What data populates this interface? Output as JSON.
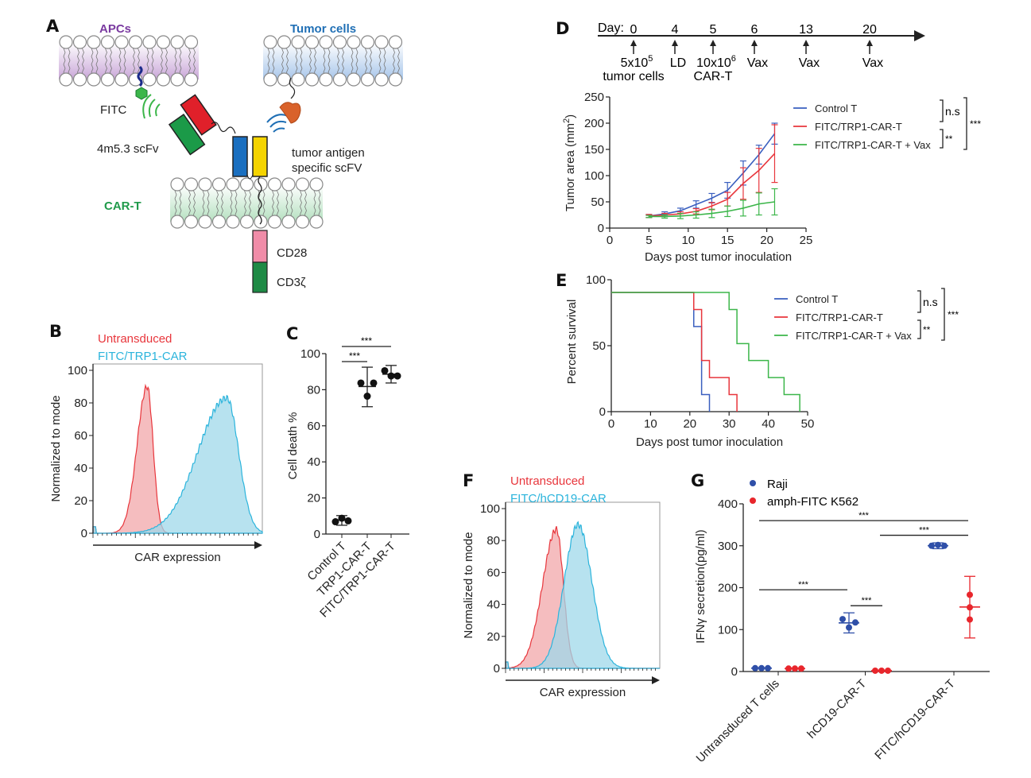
{
  "panels": {
    "A": "A",
    "B": "B",
    "C": "C",
    "D": "D",
    "E": "E",
    "F": "F",
    "G": "G"
  },
  "diagram": {
    "apcs": "APCs",
    "tumor_cells": "Tumor cells",
    "fitc": "FITC",
    "scfv": "4m5.3 scFv",
    "tumor_antigen_1": "tumor antigen",
    "tumor_antigen_2": "specific scFV",
    "car_t": "CAR-T",
    "cd28": "CD28",
    "cd3z": "CD3ζ",
    "colors": {
      "apcs": "#7a3aa0",
      "tumor": "#1f6fb5",
      "car_t": "#1f9a4a",
      "cd28": "#f08ca8",
      "cd3z": "#1e8a45",
      "scfv_green": "#1b9a48",
      "scfv_red": "#e0202a",
      "vh_blue": "#1a6fc0",
      "vl_yellow": "#f5d400",
      "antigen": "#d9622b"
    }
  },
  "timeline": {
    "day_label": "Day:",
    "events": [
      {
        "day": "0",
        "label1": "5x10",
        "sup": "5",
        "label2": "tumor cells"
      },
      {
        "day": "4",
        "label1": "LD",
        "sup": "",
        "label2": ""
      },
      {
        "day": "5",
        "label1": "10x10",
        "sup": "6",
        "label2": "CAR-T"
      },
      {
        "day": "6",
        "label1": "Vax",
        "sup": "",
        "label2": ""
      },
      {
        "day": "13",
        "label1": "Vax",
        "sup": "",
        "label2": ""
      },
      {
        "day": "20",
        "label1": "Vax",
        "sup": "",
        "label2": ""
      }
    ]
  },
  "chart_data": [
    {
      "id": "B",
      "type": "area",
      "xlabel": "CAR expression",
      "ylabel": "Normalized to mode",
      "ylim": [
        0,
        100
      ],
      "yticks": [
        "0",
        "20",
        "40",
        "60",
        "80",
        "100"
      ],
      "xlim": [
        0,
        100
      ],
      "series": [
        {
          "name": "Untransduced",
          "color": "#e8363c",
          "fill": "#f2a7a9",
          "peak_x": 32,
          "spread_left": 6,
          "spread_right": 3.5,
          "peak_y": 90
        },
        {
          "name": "FITC/TRP1-CAR",
          "color": "#2bb4dc",
          "fill": "#9fd8ea",
          "peak_x": 79,
          "spread_left": 17,
          "spread_right": 7,
          "peak_y": 83
        }
      ]
    },
    {
      "id": "C",
      "type": "scatter",
      "ylabel": "Cell death %",
      "ylim": [
        0,
        100
      ],
      "yticks": [
        "0",
        "20",
        "40",
        "60",
        "80",
        "100"
      ],
      "categories": [
        "Control T",
        "TRP1-CAR-T",
        "FITC/TRP1-CAR-T"
      ],
      "points": [
        [
          7,
          9,
          7.5
        ],
        [
          86,
          78.5,
          86
        ],
        [
          93,
          90,
          90
        ]
      ],
      "mean": [
        8,
        84,
        91
      ],
      "error": [
        [
          5,
          10.5
        ],
        [
          72.5,
          95
        ],
        [
          86,
          96
        ]
      ],
      "significance": [
        {
          "from": 0,
          "to": 1,
          "label": "***"
        },
        {
          "from": 0,
          "to": 2,
          "label": "***"
        }
      ]
    },
    {
      "id": "D",
      "type": "line",
      "xlabel": "Days post tumor inoculation",
      "ylabel": "Tumor area (mm",
      "ylabel_sup": "2",
      "ylabel_end": ")",
      "xlim": [
        0,
        25
      ],
      "ylim": [
        0,
        250
      ],
      "xticks": [
        "0",
        "5",
        "10",
        "15",
        "20",
        "25"
      ],
      "yticks": [
        "0",
        "50",
        "100",
        "150",
        "200",
        "250"
      ],
      "x": [
        5,
        7,
        9,
        11,
        13,
        15,
        17,
        19,
        21
      ],
      "series": [
        {
          "name": "Control T",
          "color": "#3a5fbf",
          "values": [
            23,
            27,
            33,
            45,
            57,
            72,
            105,
            140,
            180
          ],
          "err": [
            3,
            4,
            5,
            7,
            9,
            15,
            23,
            18,
            20
          ]
        },
        {
          "name": "FITC/TRP1-CAR-T",
          "color": "#e8363c",
          "values": [
            23,
            25,
            27,
            32,
            42,
            55,
            85,
            110,
            142
          ],
          "err": [
            3,
            3,
            4,
            5,
            7,
            13,
            30,
            42,
            55
          ]
        },
        {
          "name": "FITC/TRP1-CAR-T + Vax",
          "color": "#3cb64a",
          "values": [
            22,
            22,
            23,
            25,
            28,
            32,
            38,
            46,
            50
          ],
          "err": [
            2,
            3,
            5,
            6,
            8,
            10,
            15,
            21,
            25
          ]
        }
      ],
      "significance": {
        "pair12": "n.s",
        "pair23": "**",
        "pair13": "***"
      }
    },
    {
      "id": "E",
      "type": "line",
      "step": true,
      "xlabel": "Days post tumor inoculation",
      "ylabel": "Percent survival",
      "xlim": [
        0,
        50
      ],
      "ylim": [
        0,
        100
      ],
      "xticks": [
        "0",
        "10",
        "20",
        "30",
        "40",
        "50"
      ],
      "yticks": [
        "0",
        "50",
        "100"
      ],
      "series": [
        {
          "name": "Control T",
          "color": "#3a5fbf",
          "x": [
            0,
            21,
            23,
            25
          ],
          "y": [
            100,
            71.4,
            14.3,
            0
          ]
        },
        {
          "name": "FITC/TRP1-CAR-T",
          "color": "#e8363c",
          "x": [
            0,
            21,
            23,
            25,
            30,
            32
          ],
          "y": [
            100,
            85.7,
            42.9,
            28.6,
            14.3,
            0
          ]
        },
        {
          "name": "FITC/TRP1-CAR-T + Vax",
          "color": "#3cb64a",
          "x": [
            0,
            30,
            32,
            35,
            40,
            44,
            48
          ],
          "y": [
            100,
            85.7,
            57.1,
            42.9,
            28.6,
            14.3,
            0
          ]
        }
      ],
      "significance": {
        "pair12": "n.s",
        "pair23": "**",
        "pair13": "***"
      }
    },
    {
      "id": "F",
      "type": "area",
      "xlabel": "CAR expression",
      "ylabel": "Normalized to mode",
      "ylim": [
        0,
        100
      ],
      "yticks": [
        "0",
        "20",
        "40",
        "60",
        "80",
        "100"
      ],
      "xlim": [
        0,
        100
      ],
      "series": [
        {
          "name": "Untransduced",
          "color": "#e8363c",
          "fill": "#f2a7a9",
          "peak_x": 33,
          "spread_left": 9,
          "spread_right": 4.5,
          "peak_y": 87
        },
        {
          "name": "FITC/hCD19-CAR",
          "color": "#2bb4dc",
          "fill": "#9fd8ea",
          "peak_x": 47,
          "spread_left": 9,
          "spread_right": 9,
          "peak_y": 90
        }
      ]
    },
    {
      "id": "G",
      "type": "scatter",
      "ylabel": "IFNγ secretion(pg/ml)",
      "ylim": [
        0,
        400
      ],
      "yticks": [
        "0",
        "100",
        "200",
        "300",
        "400"
      ],
      "categories": [
        "Untransduced T cells",
        "hCD19-CAR-T",
        "FITC/hCD19-CAR-T"
      ],
      "series": [
        {
          "name": "Raji",
          "color": "#2f4fa8",
          "points": [
            [
              8,
              8,
              8
            ],
            [
              125,
              105,
              117
            ],
            [
              300,
              302,
              300
            ]
          ],
          "mean": [
            8,
            116,
            300
          ],
          "error": [
            null,
            [
              92,
              140
            ],
            [
              293,
              307
            ]
          ]
        },
        {
          "name": "amph-FITC K562",
          "color": "#e8262c",
          "points": [
            [
              7,
              7,
              7
            ],
            [
              2,
              2,
              2
            ],
            [
              183,
              153,
              124
            ]
          ],
          "mean": [
            7,
            2,
            154
          ],
          "error": [
            null,
            null,
            [
              80,
              227
            ]
          ]
        }
      ],
      "significance": [
        {
          "label": "***",
          "value": 360,
          "from": "Untransduced T cells:Raji",
          "to": "FITC/hCD19-CAR-T:amph-FITC K562"
        },
        {
          "label": "***",
          "value": 325,
          "from": "hCD19-CAR-T:amph-FITC K562",
          "to": "FITC/hCD19-CAR-T:amph-FITC K562"
        },
        {
          "label": "***",
          "value": 195,
          "from": "Untransduced T cells:Raji",
          "to": "hCD19-CAR-T:Raji"
        },
        {
          "label": "***",
          "value": 157,
          "from": "hCD19-CAR-T:Raji",
          "to": "hCD19-CAR-T:amph-FITC K562"
        }
      ]
    }
  ]
}
